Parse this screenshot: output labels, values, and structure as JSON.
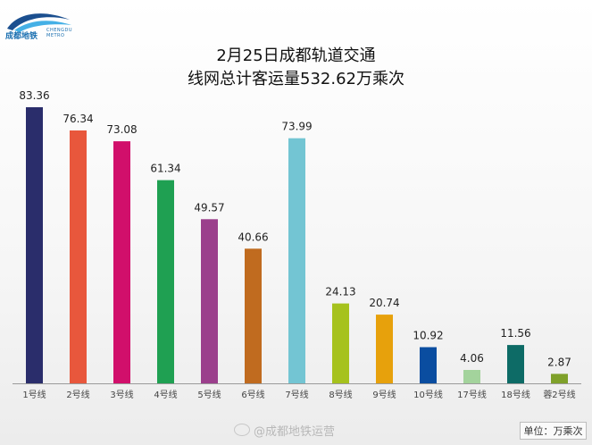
{
  "logo": {
    "name": "成都地铁",
    "subtext_line1": "CHENGDU",
    "subtext_line2": "METRO",
    "colors": {
      "arc_dark": "#1b4f8f",
      "arc_light": "#44b0e6"
    }
  },
  "title_line1": "2月25日成都轨道交通",
  "title_line2": "线网总计客运量532.62万乘次",
  "watermark": "@成都地铁运营",
  "unit_label": "单位：万乘次",
  "chart_data": {
    "type": "bar",
    "title": "2月25日成都轨道交通 线网总计客运量532.62万乘次",
    "categories": [
      "1号线",
      "2号线",
      "3号线",
      "4号线",
      "5号线",
      "6号线",
      "7号线",
      "8号线",
      "9号线",
      "10号线",
      "17号线",
      "18号线",
      "蓉2号线"
    ],
    "values": [
      83.36,
      76.34,
      73.08,
      61.34,
      49.57,
      40.66,
      73.99,
      24.13,
      20.74,
      10.92,
      4.06,
      11.56,
      2.87
    ],
    "value_labels": [
      "83.36",
      "76.34",
      "73.08",
      "61.34",
      "49.57",
      "40.66",
      "73.99",
      "24.13",
      "20.74",
      "10.92",
      "4.06",
      "11.56",
      "2.87"
    ],
    "colors": [
      "#2a2d6b",
      "#e8573c",
      "#d10f6b",
      "#1fa052",
      "#9b3f8c",
      "#c06b1f",
      "#73c5d3",
      "#a6c21d",
      "#e7a10c",
      "#0a4da0",
      "#a3d39c",
      "#0d6b66",
      "#7fa12a"
    ],
    "ylim": [
      0,
      90
    ],
    "xlabel": "",
    "ylabel": "",
    "grid": false,
    "legend": "none"
  }
}
